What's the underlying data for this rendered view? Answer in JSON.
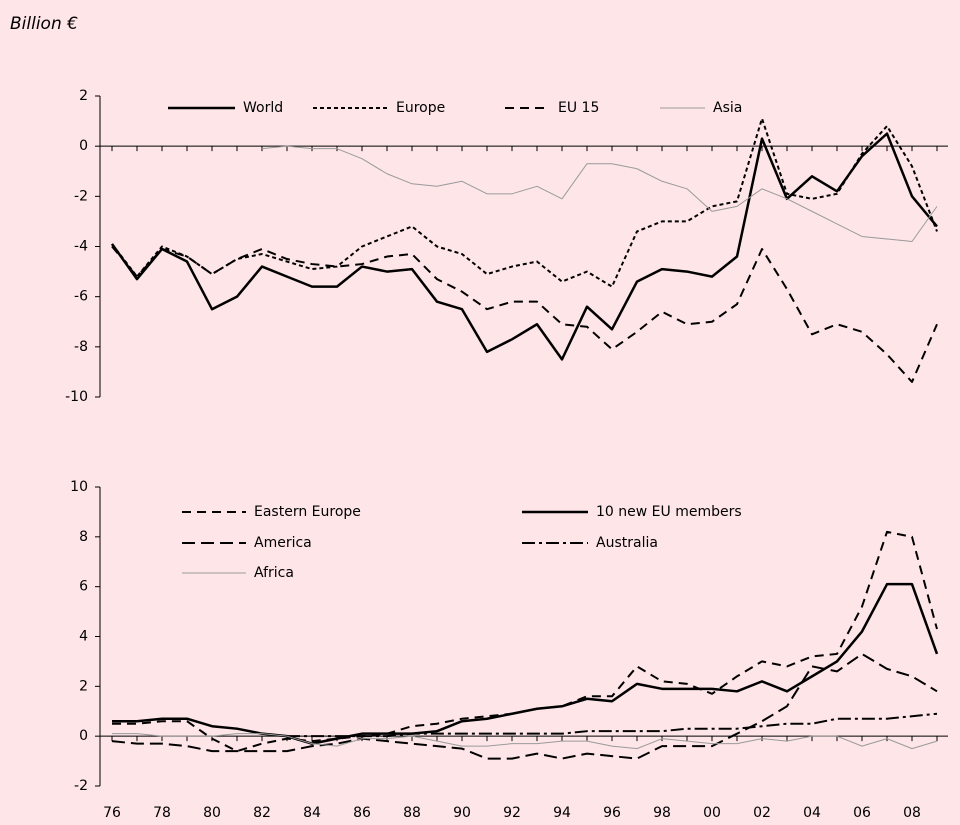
{
  "chart_data": [
    {
      "type": "line",
      "y_label": "Billion €",
      "ylim": [
        -10,
        2
      ],
      "yticks": [
        -10,
        -8,
        -6,
        -4,
        -2,
        0,
        2
      ],
      "series": [
        {
          "name": "World",
          "color": "#000000",
          "linestyle": "solid",
          "values": [
            -3.9,
            -5.3,
            -4.1,
            -4.6,
            -6.5,
            -6.0,
            -4.8,
            -5.2,
            -5.6,
            -5.6,
            -4.8,
            -5.0,
            -4.9,
            -6.2,
            -6.5,
            -8.2,
            -7.7,
            -7.1,
            -8.5,
            -6.4,
            -7.3,
            -5.4,
            -4.9,
            -5.0,
            -5.2,
            -4.4,
            0.3,
            -2.1,
            -1.2,
            -1.8,
            -0.4,
            0.5,
            -2.0,
            -3.2
          ]
        },
        {
          "name": "Europe",
          "color": "#000000",
          "linestyle": "dotted",
          "values": [
            -3.9,
            -5.2,
            -4.0,
            -4.4,
            -5.1,
            -4.5,
            -4.3,
            -4.6,
            -4.9,
            -4.8,
            -4.0,
            -3.6,
            -3.2,
            -4.0,
            -4.3,
            -5.1,
            -4.8,
            -4.6,
            -5.4,
            -5.0,
            -5.6,
            -3.4,
            -3.0,
            -3.0,
            -2.4,
            -2.2,
            1.1,
            -1.9,
            -2.1,
            -1.9,
            -0.3,
            0.8,
            -0.8,
            -3.4
          ]
        },
        {
          "name": "EU 15",
          "color": "#000000",
          "linestyle": "dashed",
          "values": [
            -4.0,
            -5.2,
            -4.1,
            -4.4,
            -5.1,
            -4.5,
            -4.1,
            -4.5,
            -4.7,
            -4.8,
            -4.7,
            -4.4,
            -4.3,
            -5.3,
            -5.8,
            -6.5,
            -6.2,
            -6.2,
            -7.1,
            -7.2,
            -8.1,
            -7.4,
            -6.6,
            -7.1,
            -7.0,
            -6.3,
            -4.1,
            -5.7,
            -7.5,
            -7.1,
            -7.4,
            -8.3,
            -9.4,
            -7.1
          ]
        },
        {
          "name": "Asia",
          "color": "#9a9a9a",
          "linestyle": "thin",
          "values": [
            null,
            null,
            null,
            null,
            null,
            null,
            -0.1,
            0.0,
            -0.1,
            -0.1,
            -0.5,
            -1.1,
            -1.5,
            -1.6,
            -1.4,
            -1.9,
            -1.9,
            -1.6,
            -2.1,
            -0.7,
            -0.7,
            -0.9,
            -1.4,
            -1.7,
            -2.6,
            -2.4,
            -1.7,
            -2.1,
            -2.6,
            -3.1,
            -3.6,
            -3.7,
            -3.8,
            -2.4
          ]
        }
      ]
    },
    {
      "type": "line",
      "ylim": [
        -2,
        10
      ],
      "yticks": [
        -2,
        0,
        2,
        4,
        6,
        8,
        10
      ],
      "categories": [
        "76",
        null,
        "78",
        null,
        "80",
        null,
        "82",
        null,
        "84",
        null,
        "86",
        null,
        "88",
        null,
        "90",
        null,
        "92",
        null,
        "94",
        null,
        "96",
        null,
        "98",
        null,
        "00",
        null,
        "02",
        null,
        "04",
        null,
        "06",
        null,
        "08",
        null
      ],
      "series": [
        {
          "name": "Eastern Europe",
          "color": "#000000",
          "linestyle": "dashed",
          "values": [
            0.5,
            0.5,
            0.6,
            0.6,
            -0.1,
            -0.6,
            -0.3,
            -0.1,
            -0.2,
            -0.1,
            0.0,
            0.1,
            0.4,
            0.5,
            0.7,
            0.8,
            0.9,
            1.1,
            1.2,
            1.6,
            1.6,
            2.8,
            2.2,
            2.1,
            1.7,
            2.4,
            3.0,
            2.8,
            3.2,
            3.3,
            5.2,
            8.2,
            8.0,
            4.3
          ]
        },
        {
          "name": "10 new EU members",
          "color": "#000000",
          "linestyle": "solid",
          "values": [
            0.6,
            0.6,
            0.7,
            0.7,
            0.4,
            0.3,
            0.1,
            0.0,
            -0.3,
            -0.1,
            0.1,
            0.1,
            0.1,
            0.2,
            0.6,
            0.7,
            0.9,
            1.1,
            1.2,
            1.5,
            1.4,
            2.1,
            1.9,
            1.9,
            1.9,
            1.8,
            2.2,
            1.8,
            2.4,
            3.0,
            4.2,
            6.1,
            6.1,
            3.3
          ]
        },
        {
          "name": "America",
          "color": "#000000",
          "linestyle": "longdash",
          "values": [
            -0.2,
            -0.3,
            -0.3,
            -0.4,
            -0.6,
            -0.6,
            -0.6,
            -0.6,
            -0.4,
            -0.3,
            -0.1,
            -0.2,
            -0.3,
            -0.4,
            -0.5,
            -0.9,
            -0.9,
            -0.7,
            -0.9,
            -0.7,
            -0.8,
            -0.9,
            -0.4,
            -0.4,
            -0.4,
            0.1,
            0.6,
            1.2,
            2.8,
            2.6,
            3.3,
            2.7,
            2.4,
            1.8
          ]
        },
        {
          "name": "Australia",
          "color": "#000000",
          "linestyle": "dashdot",
          "values": [
            null,
            null,
            null,
            null,
            null,
            null,
            null,
            0.0,
            0.0,
            0.0,
            0.0,
            0.0,
            0.1,
            0.1,
            0.1,
            0.1,
            0.1,
            0.1,
            0.1,
            0.2,
            0.2,
            0.2,
            0.2,
            0.3,
            0.3,
            0.3,
            0.4,
            0.5,
            0.5,
            0.7,
            0.7,
            0.7,
            0.8,
            0.9
          ]
        },
        {
          "name": "Africa",
          "color": "#9a9a9a",
          "linestyle": "thin",
          "values": [
            0.1,
            0.1,
            0.0,
            0.0,
            0.0,
            0.1,
            0.1,
            0.0,
            -0.3,
            -0.4,
            -0.1,
            -0.1,
            0.0,
            -0.2,
            -0.4,
            -0.4,
            -0.3,
            -0.3,
            -0.2,
            -0.2,
            -0.4,
            -0.5,
            -0.1,
            -0.2,
            -0.3,
            -0.3,
            -0.1,
            -0.2,
            0.0,
            0.0,
            -0.4,
            -0.1,
            -0.5,
            -0.2
          ]
        }
      ]
    }
  ]
}
